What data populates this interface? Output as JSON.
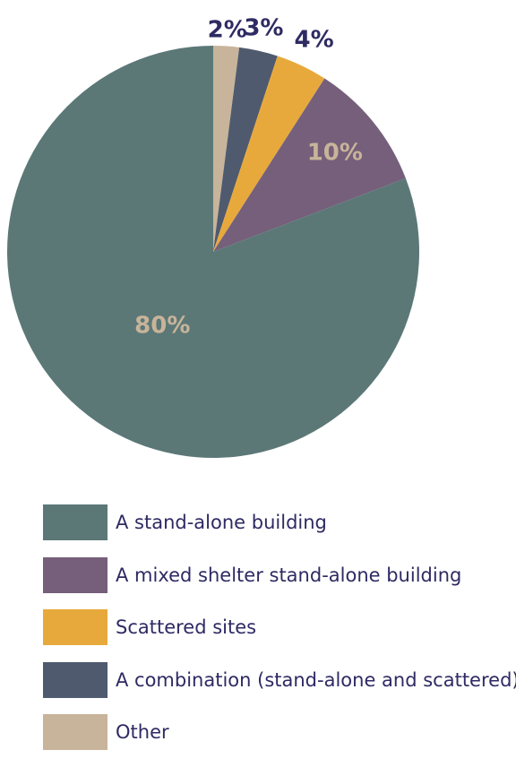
{
  "chart_data": {
    "type": "pie",
    "title": "",
    "slices": [
      {
        "label": "A stand-alone building",
        "value": 80,
        "display": "80%",
        "color": "#5b7877",
        "label_color": "#c8b49a"
      },
      {
        "label": "A mixed shelter stand-alone building",
        "value": 10,
        "display": "10%",
        "color": "#755f7a",
        "label_color": "#c8b49a"
      },
      {
        "label": "Scattered sites",
        "value": 4,
        "display": "4%",
        "color": "#e8a93c",
        "label_color": "#2e2a63"
      },
      {
        "label": "A combination (stand-alone and scattered)",
        "value": 3,
        "display": "3%",
        "color": "#4f5a6e",
        "label_color": "#2e2a63"
      },
      {
        "label": "Other",
        "value": 2,
        "display": "2%",
        "color": "#c8b49a",
        "label_color": "#2e2a63"
      }
    ],
    "legend_position": "bottom"
  },
  "legend": {
    "items": [
      {
        "label": "A stand-alone building",
        "color": "#5b7877"
      },
      {
        "label": "A mixed shelter stand-alone building",
        "color": "#755f7a"
      },
      {
        "label": "Scattered sites",
        "color": "#e8a93c"
      },
      {
        "label": "A combination (stand-alone and scattered)",
        "color": "#4f5a6e"
      },
      {
        "label": "Other",
        "color": "#c8b49a"
      }
    ]
  }
}
